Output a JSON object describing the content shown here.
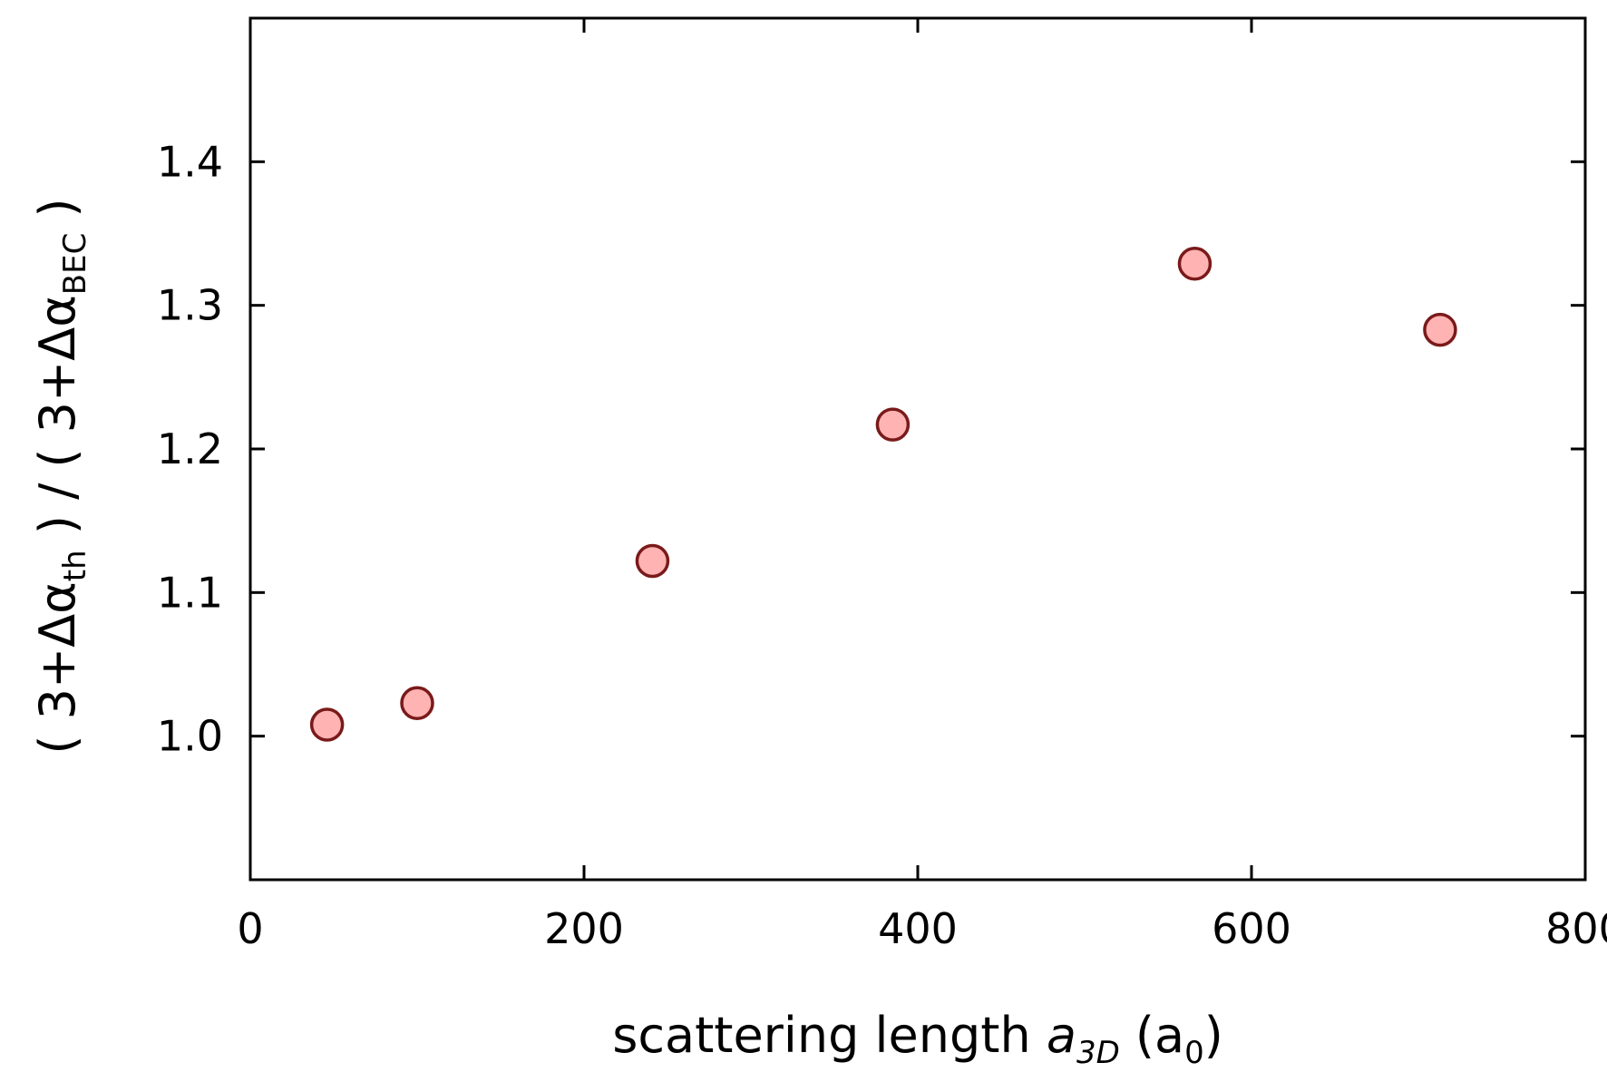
{
  "chart_data": {
    "type": "scatter",
    "xlabel": {
      "prefix": "scattering length ",
      "var": "a",
      "var_sub": "3D",
      "unit_open": " (a",
      "unit_sub": "0",
      "unit_close": ")"
    },
    "ylabel": {
      "open": "( 3+Δα",
      "sub1": "th",
      "mid": " ) / ( 3+Δα",
      "sub2": "BEC",
      "close": " )"
    },
    "xlim": [
      0,
      800
    ],
    "ylim": [
      0.9,
      1.5
    ],
    "x_ticks": [
      0,
      200,
      400,
      600,
      800
    ],
    "x_tick_labels": [
      "0",
      "200",
      "400",
      "600",
      "800"
    ],
    "y_ticks": [
      1.0,
      1.1,
      1.2,
      1.3,
      1.4
    ],
    "y_tick_labels": [
      "1.0",
      "1.1",
      "1.2",
      "1.3",
      "1.4"
    ],
    "grid": false,
    "marker_fill": "#ffb3b3",
    "marker_edge": "#7a1a1a",
    "points": [
      {
        "x": 46,
        "y": 1.008
      },
      {
        "x": 100,
        "y": 1.023
      },
      {
        "x": 241,
        "y": 1.122
      },
      {
        "x": 385,
        "y": 1.217
      },
      {
        "x": 566,
        "y": 1.329
      },
      {
        "x": 713,
        "y": 1.283
      }
    ]
  }
}
